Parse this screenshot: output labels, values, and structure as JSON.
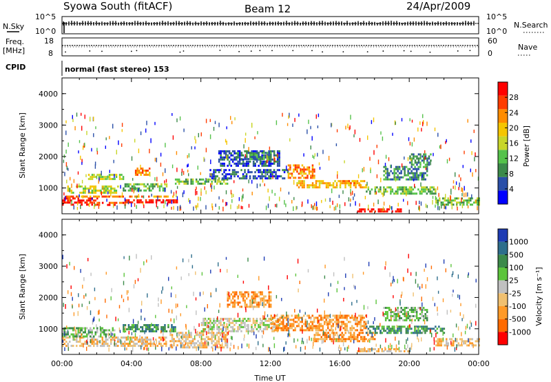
{
  "header": {
    "station": "Syowa South (fitACF)",
    "beam": "Beam 12",
    "date": "24/Apr/2009"
  },
  "panels": {
    "nsky": {
      "label": "N.Sky",
      "right_label": "N.Search",
      "left_ticks": [
        "10^5",
        "10^0"
      ],
      "right_ticks": [
        "10^5",
        "10^0"
      ]
    },
    "freq": {
      "label_line1": "Freq.",
      "label_line2": "[MHz]",
      "right_label": "Nave",
      "left_ticks": [
        "18",
        "8"
      ],
      "right_ticks": [
        "60",
        "0"
      ]
    },
    "cpid": {
      "label": "CPID",
      "value": "normal (fast stereo) 153"
    }
  },
  "colors": {
    "power_scale": [
      "#0000ff",
      "#2a4fa8",
      "#3c8a4a",
      "#55c24a",
      "#c8d62a",
      "#f5c500",
      "#ff8c00",
      "#ff3c00",
      "#ff0000"
    ],
    "velocity_scale": [
      "#1e3cb4",
      "#2e6e8c",
      "#3c8a4a",
      "#5cc43c",
      "#c0c0c0",
      "#f0c070",
      "#ff9a28",
      "#ff6a00",
      "#ff0000"
    ]
  },
  "chart_data": [
    {
      "type": "heatmap",
      "name": "power-panel",
      "ylabel": "Slant Range [km]",
      "xlabel": "",
      "ylim": [
        180,
        4500
      ],
      "yticks": [
        "1000",
        "2000",
        "3000",
        "4000"
      ],
      "ytick_values": [
        1000,
        2000,
        3000,
        4000
      ],
      "xlim": [
        0,
        24
      ],
      "colorbar": {
        "label": "Power [dB]",
        "range": [
          0,
          32
        ],
        "tick_values": [
          4,
          8,
          12,
          16,
          20,
          24,
          28
        ],
        "ticks": [
          "4",
          "8",
          "12",
          "16",
          "20",
          "24",
          "28"
        ]
      },
      "bands": [
        {
          "t": [
            0.0,
            2.0
          ],
          "r": [
            500,
            700
          ],
          "level": 8
        },
        {
          "t": [
            1.8,
            3.6
          ],
          "r": [
            480,
            560
          ],
          "level": 7
        },
        {
          "t": [
            3.6,
            6.8
          ],
          "r": [
            540,
            640
          ],
          "level": 8
        },
        {
          "t": [
            0.2,
            6.6
          ],
          "r": [
            700,
            760
          ],
          "level": 6
        },
        {
          "t": [
            0.3,
            3.2
          ],
          "r": [
            860,
            1080
          ],
          "level": 4
        },
        {
          "t": [
            3.5,
            6.0
          ],
          "r": [
            950,
            1150
          ],
          "level": 3
        },
        {
          "t": [
            1.5,
            3.5
          ],
          "r": [
            1300,
            1450
          ],
          "level": 4
        },
        {
          "t": [
            4.2,
            5.0
          ],
          "r": [
            1450,
            1650
          ],
          "level": 6
        },
        {
          "t": [
            6.5,
            9.5
          ],
          "r": [
            1150,
            1300
          ],
          "level": 3
        },
        {
          "t": [
            8.5,
            13.0
          ],
          "r": [
            1300,
            1600
          ],
          "level": 1
        },
        {
          "t": [
            9.0,
            12.5
          ],
          "r": [
            1700,
            2200
          ],
          "level": 1
        },
        {
          "t": [
            10.0,
            12.0
          ],
          "r": [
            1950,
            2150
          ],
          "level": 2
        },
        {
          "t": [
            13.0,
            14.5
          ],
          "r": [
            1350,
            1750
          ],
          "level": 6
        },
        {
          "t": [
            13.5,
            17.5
          ],
          "r": [
            1050,
            1250
          ],
          "level": 5
        },
        {
          "t": [
            16.0,
            17.0
          ],
          "r": [
            1150,
            1250
          ],
          "level": 6
        },
        {
          "t": [
            17.5,
            21.5
          ],
          "r": [
            850,
            1050
          ],
          "level": 3
        },
        {
          "t": [
            18.5,
            21.0
          ],
          "r": [
            1300,
            1700
          ],
          "level": 2
        },
        {
          "t": [
            20.0,
            21.2
          ],
          "r": [
            1750,
            2100
          ],
          "level": 2
        },
        {
          "t": [
            17.0,
            19.5
          ],
          "r": [
            250,
            350
          ],
          "level": 8
        },
        {
          "t": [
            21.5,
            24.0
          ],
          "r": [
            500,
            700
          ],
          "level": 3
        }
      ]
    },
    {
      "type": "heatmap",
      "name": "velocity-panel",
      "ylabel": "Slant Range [km]",
      "xlabel": "Time UT",
      "ylim": [
        180,
        4500
      ],
      "yticks": [
        "1000",
        "2000",
        "3000",
        "4000"
      ],
      "ytick_values": [
        1000,
        2000,
        3000,
        4000
      ],
      "xlim": [
        0,
        24
      ],
      "xticks": [
        "00:00",
        "04:00",
        "08:00",
        "12:00",
        "16:00",
        "20:00",
        "00:00"
      ],
      "xtick_values": [
        0,
        4,
        8,
        12,
        16,
        20,
        24
      ],
      "colorbar": {
        "label": "Velocity [m s⁻¹]",
        "ticks": [
          "1000",
          "500",
          "100",
          "25",
          "-25",
          "-100",
          "-500",
          "-1000"
        ]
      },
      "bands": [
        {
          "t": [
            0.0,
            6.0
          ],
          "r": [
            450,
            750
          ],
          "level": 5
        },
        {
          "t": [
            0.0,
            3.0
          ],
          "r": [
            780,
            1050
          ],
          "level": 3
        },
        {
          "t": [
            3.5,
            6.5
          ],
          "r": [
            950,
            1150
          ],
          "level": 2
        },
        {
          "t": [
            6.2,
            9.5
          ],
          "r": [
            400,
            900
          ],
          "level": 5
        },
        {
          "t": [
            8.0,
            12.5
          ],
          "r": [
            950,
            1350
          ],
          "level": 4
        },
        {
          "t": [
            9.5,
            12.0
          ],
          "r": [
            1700,
            2200
          ],
          "level": 6
        },
        {
          "t": [
            12.0,
            17.5
          ],
          "r": [
            950,
            1450
          ],
          "level": 6
        },
        {
          "t": [
            14.5,
            18.0
          ],
          "r": [
            600,
            900
          ],
          "level": 6
        },
        {
          "t": [
            17.5,
            22.0
          ],
          "r": [
            850,
            1100
          ],
          "level": 2
        },
        {
          "t": [
            18.5,
            21.0
          ],
          "r": [
            1300,
            1700
          ],
          "level": 3
        },
        {
          "t": [
            17.0,
            20.0
          ],
          "r": [
            250,
            380
          ],
          "level": 5
        },
        {
          "t": [
            21.5,
            24.0
          ],
          "r": [
            450,
            700
          ],
          "level": 5
        }
      ]
    }
  ]
}
